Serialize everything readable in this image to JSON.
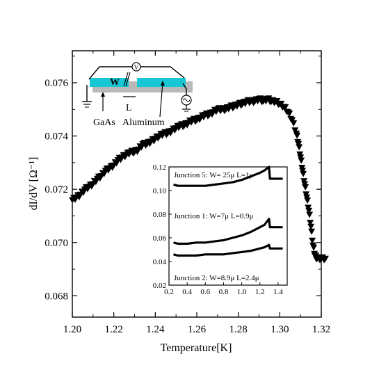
{
  "chart_data": [
    {
      "type": "scatter",
      "title": "",
      "xlabel": "Temperature[K]",
      "ylabel": "dI/dV  [Ω⁻¹]",
      "xlim": [
        1.2,
        1.32
      ],
      "ylim": [
        0.0672,
        0.0772
      ],
      "xticks": [
        "1.20",
        "1.22",
        "1.24",
        "1.26",
        "1.28",
        "1.30",
        "1.32"
      ],
      "yticks": [
        "0.068",
        "0.070",
        "0.072",
        "0.074",
        "0.076"
      ],
      "marker": "down-triangle",
      "series": [
        {
          "x": [
            1.2,
            1.202,
            1.204,
            1.206,
            1.208,
            1.21,
            1.212,
            1.214,
            1.216,
            1.218,
            1.22,
            1.222,
            1.224,
            1.226,
            1.228,
            1.23,
            1.232,
            1.234,
            1.236,
            1.238,
            1.24,
            1.242,
            1.244,
            1.246,
            1.248,
            1.25,
            1.252,
            1.254,
            1.256,
            1.258,
            1.26,
            1.262,
            1.264,
            1.266,
            1.268,
            1.27,
            1.272,
            1.274,
            1.276,
            1.278,
            1.28,
            1.282,
            1.284,
            1.286,
            1.288,
            1.29,
            1.292,
            1.294,
            1.296,
            1.298,
            1.3,
            1.302,
            1.304,
            1.306,
            1.308,
            1.309,
            1.31,
            1.311,
            1.312,
            1.313,
            1.314,
            1.315,
            1.316,
            1.317,
            1.318,
            1.32,
            1.322
          ],
          "y": [
            0.0716,
            0.0717,
            0.0718,
            0.072,
            0.0721,
            0.0722,
            0.0724,
            0.0725,
            0.0727,
            0.0728,
            0.0729,
            0.0731,
            0.0732,
            0.0733,
            0.0734,
            0.0734,
            0.0735,
            0.0737,
            0.0737,
            0.0738,
            0.0739,
            0.074,
            0.0741,
            0.0741,
            0.0742,
            0.0743,
            0.0744,
            0.0744,
            0.0745,
            0.0746,
            0.0746,
            0.0747,
            0.0748,
            0.0748,
            0.0749,
            0.075,
            0.075,
            0.075,
            0.0751,
            0.0751,
            0.0752,
            0.0752,
            0.0753,
            0.0753,
            0.0753,
            0.0754,
            0.0753,
            0.0754,
            0.0753,
            0.0753,
            0.0752,
            0.0751,
            0.0749,
            0.0746,
            0.0741,
            0.0737,
            0.0732,
            0.0727,
            0.0722,
            0.0717,
            0.0712,
            0.0706,
            0.0699,
            0.0695,
            0.0694,
            0.0694,
            0.0694
          ]
        }
      ]
    },
    {
      "type": "line",
      "title": "",
      "xlim": [
        0.2,
        1.5
      ],
      "ylim": [
        0.02,
        0.12
      ],
      "xticks": [
        "0.2",
        "0.4",
        "0.6",
        "0.8",
        "1.0",
        "1.2",
        "1.4"
      ],
      "yticks": [
        "0.02",
        "0.04",
        "0.06",
        "0.08",
        "0.10",
        "0.12"
      ],
      "annotations": [
        "Junction 5: W= 25μ  L=1μ",
        "Junction 1: W=7μ  L=0.9μ",
        "Junction 2: W=8.9μ  L=2.4μ"
      ],
      "series": [
        {
          "x": [
            0.25,
            0.3,
            0.4,
            0.5,
            0.6,
            0.7,
            0.8,
            0.9,
            1.0,
            1.1,
            1.2,
            1.25,
            1.3,
            1.31,
            1.35,
            1.4,
            1.45
          ],
          "y": [
            0.105,
            0.104,
            0.104,
            0.104,
            0.104,
            0.105,
            0.106,
            0.107,
            0.109,
            0.112,
            0.115,
            0.117,
            0.12,
            0.11,
            0.11,
            0.11,
            0.11
          ]
        },
        {
          "x": [
            0.25,
            0.3,
            0.4,
            0.5,
            0.6,
            0.7,
            0.8,
            0.9,
            1.0,
            1.1,
            1.2,
            1.25,
            1.3,
            1.31,
            1.35,
            1.4,
            1.45
          ],
          "y": [
            0.056,
            0.055,
            0.055,
            0.056,
            0.056,
            0.057,
            0.058,
            0.06,
            0.062,
            0.065,
            0.069,
            0.071,
            0.076,
            0.069,
            0.069,
            0.069,
            0.069
          ]
        },
        {
          "x": [
            0.25,
            0.3,
            0.4,
            0.5,
            0.6,
            0.7,
            0.8,
            0.9,
            1.0,
            1.1,
            1.2,
            1.25,
            1.3,
            1.31,
            1.35,
            1.4,
            1.45
          ],
          "y": [
            0.046,
            0.045,
            0.045,
            0.045,
            0.046,
            0.046,
            0.046,
            0.047,
            0.048,
            0.049,
            0.051,
            0.052,
            0.054,
            0.051,
            0.051,
            0.051,
            0.051
          ]
        }
      ]
    }
  ],
  "diagram": {
    "meter_label": "V",
    "w_label": "W",
    "l_label": "L",
    "gaas_label": "GaAs",
    "aluminum_label": "Aluminum"
  },
  "colors": {
    "film": "#19c6d4",
    "substrate": "#b9b9b9",
    "ink": "#000000"
  }
}
